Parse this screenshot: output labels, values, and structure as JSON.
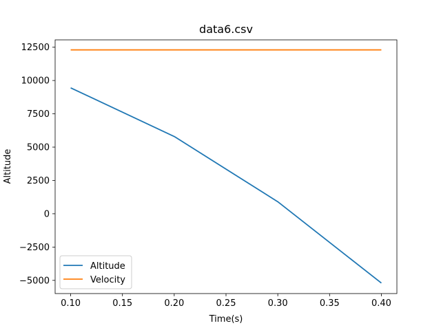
{
  "chart_data": {
    "type": "line",
    "title": "data6.csv",
    "xlabel": "Time(s)",
    "ylabel": "Altitude",
    "xlim": [
      0.085,
      0.415
    ],
    "ylim": [
      -5990,
      13050
    ],
    "x": [
      0.1,
      0.2,
      0.3,
      0.4
    ],
    "xticks": [
      0.1,
      0.15,
      0.2,
      0.25,
      0.3,
      0.35,
      0.4
    ],
    "xtick_labels": [
      "0.10",
      "0.15",
      "0.20",
      "0.25",
      "0.30",
      "0.35",
      "0.40"
    ],
    "yticks": [
      -5000,
      -2500,
      0,
      2500,
      5000,
      7500,
      10000,
      12500
    ],
    "ytick_labels": [
      "−5000",
      "−2500",
      "0",
      "2500",
      "5000",
      "7500",
      "10000",
      "12500"
    ],
    "grid": false,
    "legend_position": "lower-left",
    "series": [
      {
        "name": "Altitude",
        "color": "#1f77b4",
        "values": [
          9450,
          5800,
          900,
          -5200
        ]
      },
      {
        "name": "Velocity",
        "color": "#ff7f0e",
        "values": [
          12300,
          12300,
          12300,
          12300
        ]
      }
    ]
  }
}
